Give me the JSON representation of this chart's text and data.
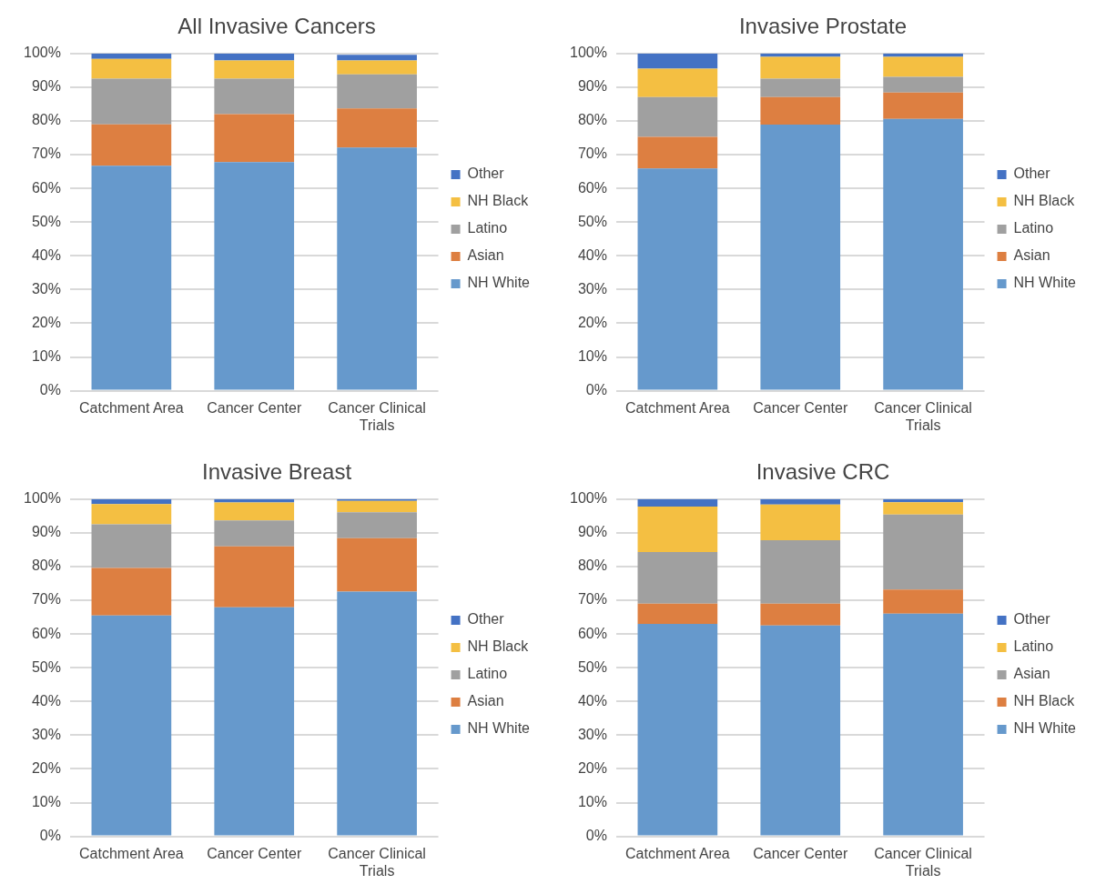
{
  "chart_data": [
    {
      "type": "bar",
      "title": "All Invasive Cancers",
      "stacked": true,
      "categories": [
        "Catchment Area",
        "Cancer Center",
        "Cancer Clinical Trials"
      ],
      "ylim": [
        0,
        100
      ],
      "yticks": [
        {
          "value": 0,
          "label": "0%"
        },
        {
          "value": 10,
          "label": "10%"
        },
        {
          "value": 20,
          "label": "20%"
        },
        {
          "value": 30,
          "label": "30%"
        },
        {
          "value": 40,
          "label": "40%"
        },
        {
          "value": 50,
          "label": "50%"
        },
        {
          "value": 60,
          "label": "60%"
        },
        {
          "value": 70,
          "label": "70%"
        },
        {
          "value": 80,
          "label": "80%"
        },
        {
          "value": 90,
          "label": "90%"
        },
        {
          "value": 100,
          "label": "100%"
        }
      ],
      "grid": "y",
      "legend": "right",
      "series": [
        {
          "name": "NH White",
          "color": "#6699cc",
          "values": [
            66.7,
            67.8,
            72.1
          ]
        },
        {
          "name": "Asian",
          "color": "#dd7f41",
          "values": [
            12.3,
            14.2,
            11.6
          ]
        },
        {
          "name": "Latino",
          "color": "#a0a0a0",
          "values": [
            13.5,
            10.5,
            10.1
          ]
        },
        {
          "name": "NH Black",
          "color": "#f4bf42",
          "values": [
            5.9,
            5.4,
            4.1
          ]
        },
        {
          "name": "Other",
          "color": "#4472c4",
          "values": [
            1.6,
            2.1,
            1.7
          ]
        }
      ]
    },
    {
      "type": "bar",
      "title": "Invasive Prostate",
      "stacked": true,
      "categories": [
        "Catchment Area",
        "Cancer Center",
        "Cancer Clinical Trials"
      ],
      "ylim": [
        0,
        100
      ],
      "yticks": [
        {
          "value": 0,
          "label": "0%"
        },
        {
          "value": 10,
          "label": "10%"
        },
        {
          "value": 20,
          "label": "20%"
        },
        {
          "value": 30,
          "label": "30%"
        },
        {
          "value": 40,
          "label": "40%"
        },
        {
          "value": 50,
          "label": "50%"
        },
        {
          "value": 60,
          "label": "60%"
        },
        {
          "value": 70,
          "label": "70%"
        },
        {
          "value": 80,
          "label": "80%"
        },
        {
          "value": 90,
          "label": "90%"
        },
        {
          "value": 100,
          "label": "100%"
        }
      ],
      "grid": "y",
      "legend": "right",
      "series": [
        {
          "name": "NH White",
          "color": "#6699cc",
          "values": [
            65.9,
            78.9,
            80.6
          ]
        },
        {
          "name": "Asian",
          "color": "#dd7f41",
          "values": [
            9.4,
            8.2,
            7.8
          ]
        },
        {
          "name": "Latino",
          "color": "#a0a0a0",
          "values": [
            11.8,
            5.4,
            4.7
          ]
        },
        {
          "name": "NH Black",
          "color": "#f4bf42",
          "values": [
            8.4,
            6.5,
            5.9
          ]
        },
        {
          "name": "Other",
          "color": "#4472c4",
          "values": [
            4.5,
            1.0,
            1.0
          ]
        }
      ]
    },
    {
      "type": "bar",
      "title": "Invasive Breast",
      "stacked": true,
      "categories": [
        "Catchment Area",
        "Cancer Center",
        "Cancer Clinical Trials"
      ],
      "ylim": [
        0,
        100
      ],
      "yticks": [
        {
          "value": 0,
          "label": "0%"
        },
        {
          "value": 10,
          "label": "10%"
        },
        {
          "value": 20,
          "label": "20%"
        },
        {
          "value": 30,
          "label": "30%"
        },
        {
          "value": 40,
          "label": "40%"
        },
        {
          "value": 50,
          "label": "50%"
        },
        {
          "value": 60,
          "label": "60%"
        },
        {
          "value": 70,
          "label": "70%"
        },
        {
          "value": 80,
          "label": "80%"
        },
        {
          "value": 90,
          "label": "90%"
        },
        {
          "value": 100,
          "label": "100%"
        }
      ],
      "grid": "y",
      "legend": "right",
      "series": [
        {
          "name": "NH White",
          "color": "#6699cc",
          "values": [
            65.5,
            67.9,
            72.6
          ]
        },
        {
          "name": "Asian",
          "color": "#dd7f41",
          "values": [
            14.1,
            18.1,
            15.8
          ]
        },
        {
          "name": "Latino",
          "color": "#a0a0a0",
          "values": [
            12.9,
            7.7,
            7.7
          ]
        },
        {
          "name": "NH Black",
          "color": "#f4bf42",
          "values": [
            6.0,
            5.3,
            3.4
          ]
        },
        {
          "name": "Other",
          "color": "#4472c4",
          "values": [
            1.5,
            1.0,
            0.5
          ]
        }
      ]
    },
    {
      "type": "bar",
      "title": "Invasive CRC",
      "stacked": true,
      "categories": [
        "Catchment Area",
        "Cancer Center",
        "Cancer Clinical Trials"
      ],
      "ylim": [
        0,
        100
      ],
      "yticks": [
        {
          "value": 0,
          "label": "0%"
        },
        {
          "value": 10,
          "label": "10%"
        },
        {
          "value": 20,
          "label": "20%"
        },
        {
          "value": 30,
          "label": "30%"
        },
        {
          "value": 40,
          "label": "40%"
        },
        {
          "value": 50,
          "label": "50%"
        },
        {
          "value": 60,
          "label": "60%"
        },
        {
          "value": 70,
          "label": "70%"
        },
        {
          "value": 80,
          "label": "80%"
        },
        {
          "value": 90,
          "label": "90%"
        },
        {
          "value": 100,
          "label": "100%"
        }
      ],
      "grid": "y",
      "legend": "right",
      "series": [
        {
          "name": "NH White",
          "color": "#6699cc",
          "values": [
            63.0,
            62.5,
            66.0
          ]
        },
        {
          "name": "NH Black",
          "color": "#dd7f41",
          "values": [
            6.0,
            6.5,
            7.2
          ]
        },
        {
          "name": "Asian",
          "color": "#a0a0a0",
          "values": [
            15.3,
            18.8,
            22.2
          ]
        },
        {
          "name": "Latino",
          "color": "#f4bf42",
          "values": [
            13.5,
            10.6,
            3.7
          ]
        },
        {
          "name": "Other",
          "color": "#4472c4",
          "values": [
            2.2,
            1.6,
            0.9
          ]
        }
      ]
    }
  ]
}
